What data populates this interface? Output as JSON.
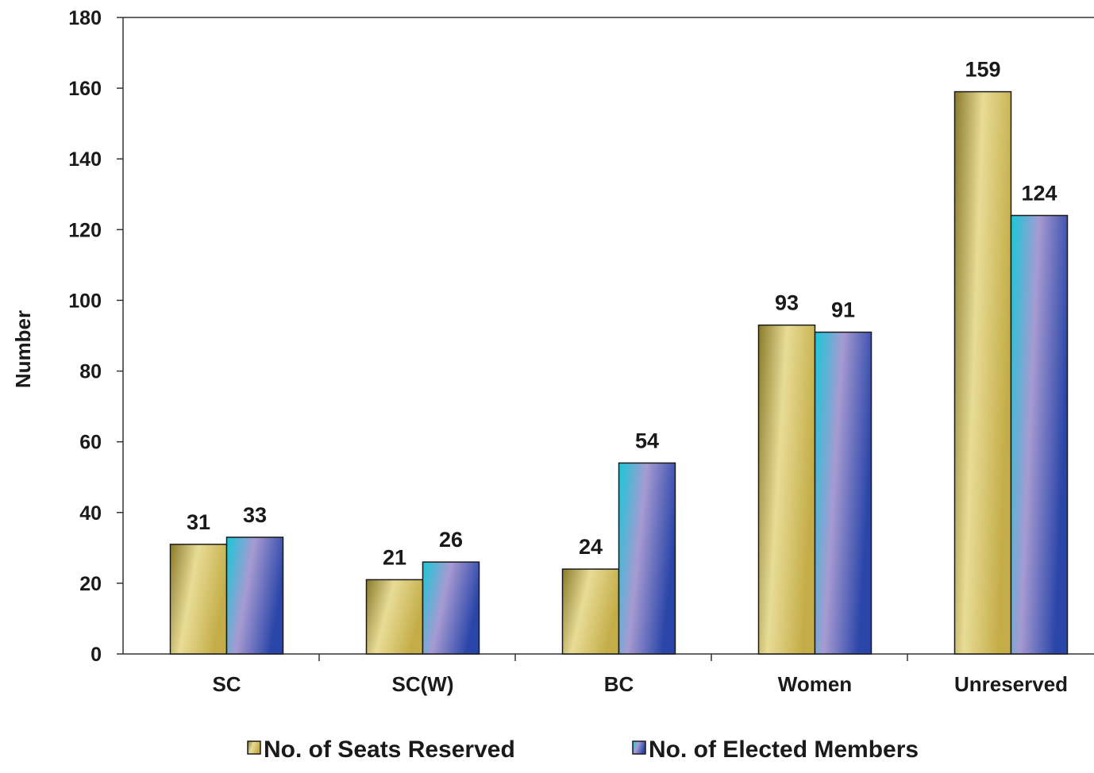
{
  "chart_data": {
    "type": "bar",
    "title": "",
    "xlabel": "",
    "ylabel": "Number",
    "ylim": [
      0,
      180
    ],
    "yticks": [
      0,
      20,
      40,
      60,
      80,
      100,
      120,
      140,
      160,
      180
    ],
    "grid": false,
    "legend_position": "bottom",
    "categories": [
      "SC",
      "SC(W)",
      "BC",
      "Women",
      "Unreserved"
    ],
    "series": [
      {
        "name": "No. of Seats Reserved",
        "values": [
          31,
          21,
          24,
          93,
          159
        ],
        "color": "#c9b24a",
        "gradient": [
          "#8a7a2a",
          "#e8dc96",
          "#c4ad48"
        ]
      },
      {
        "name": "No. of Elected Members",
        "values": [
          33,
          26,
          54,
          91,
          124
        ],
        "color": "#2b8fd0",
        "gradient": [
          "#18c8d8",
          "#a79ad2",
          "#2a46a8"
        ]
      }
    ]
  }
}
